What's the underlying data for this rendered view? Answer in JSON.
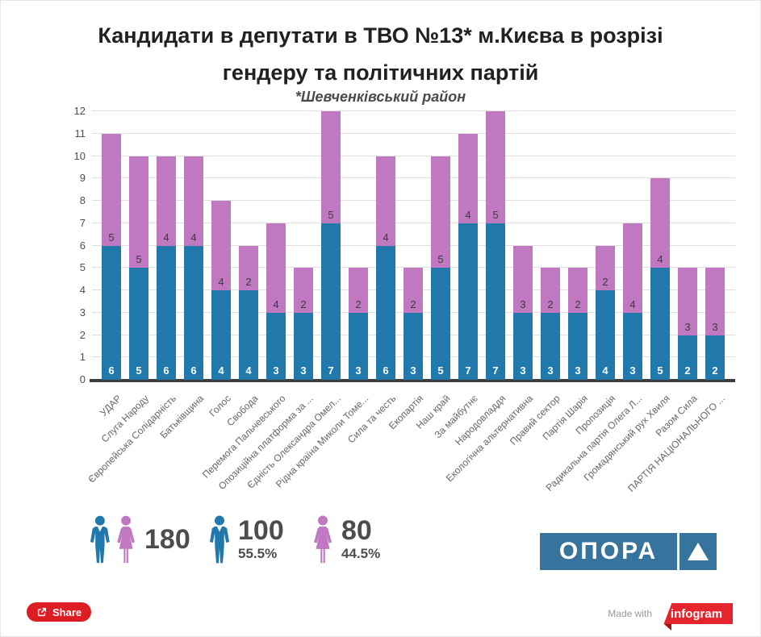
{
  "title": "Кандидати в депутати в ТВО №13* м.Києва в розрізі гендеру та політичних партій",
  "subtitle": "*Шевченківський район",
  "chart_data": {
    "type": "bar",
    "stacked": true,
    "title": "Кандидати в депутати в ТВО №13* м.Києва в розрізі гендеру та політичних партій",
    "subtitle": "*Шевченківський район",
    "xlabel": "",
    "ylabel": "",
    "ylim": [
      0,
      12
    ],
    "yticks": [
      0,
      1,
      2,
      3,
      4,
      5,
      6,
      7,
      8,
      9,
      10,
      11,
      12
    ],
    "grid": true,
    "value_labels": true,
    "categories": [
      "УДАР",
      "Слуга Народу",
      "Європейська Солідарність",
      "Батьківщина",
      "Голос",
      "Свобода",
      "Перемога Пальчевського",
      "Опозиційна платформа за ...",
      "Єдність Олександра Омел...",
      "Рідна країна Миколи Томе...",
      "Сила та честь",
      "Екопартія",
      "Наш край",
      "За майбутнє",
      "Народовладдя",
      "Екологічна альтернативна",
      "Правий сектор",
      "Партія Шарія",
      "Пропозиція",
      "Радикальна партія Олега Л...",
      "Громадянський рух Хвиля",
      "Разом Сила",
      "ПАРТІЯ НАЦІОНАЛЬНОГО ..."
    ],
    "series": [
      {
        "name": "male",
        "color": "#2178ab",
        "values": [
          6,
          5,
          6,
          6,
          4,
          4,
          3,
          3,
          7,
          3,
          6,
          3,
          5,
          7,
          7,
          3,
          3,
          3,
          4,
          3,
          5,
          2,
          2
        ]
      },
      {
        "name": "female",
        "color": "#c079c0",
        "values": [
          5,
          5,
          4,
          4,
          4,
          2,
          4,
          2,
          5,
          2,
          4,
          2,
          5,
          4,
          5,
          3,
          2,
          2,
          2,
          4,
          4,
          3,
          3
        ]
      }
    ]
  },
  "summary": {
    "total": {
      "value": "180",
      "icon": "male-female-pictogram"
    },
    "male": {
      "value": "100",
      "percent": "55.5%",
      "icon": "male-pictogram"
    },
    "female": {
      "value": "80",
      "percent": "44.5%",
      "icon": "female-pictogram"
    }
  },
  "branding": {
    "opora": "ОПОРА",
    "made_with": "Made with",
    "infogram": "infogram"
  },
  "share_label": "Share",
  "colors": {
    "male": "#2178ab",
    "female": "#c079c0",
    "share_red": "#dd1d24",
    "infogram_red": "#e5252c",
    "opora_blue": "#36749e"
  }
}
